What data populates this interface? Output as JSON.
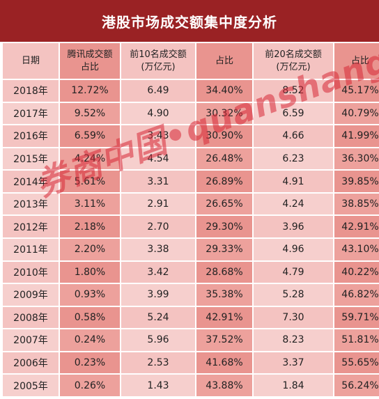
{
  "title": "港股市场成交额集中度分析",
  "headers": [
    [
      "日期"
    ],
    [
      "腾讯成交额",
      "占比"
    ],
    [
      "前10名成交额",
      "(万亿元)"
    ],
    [
      "占比"
    ],
    [
      "前20名成交额",
      "(万亿元)"
    ],
    [
      "占比"
    ]
  ],
  "rows": [
    [
      "2018年",
      "12.72%",
      "6.49",
      "34.40%",
      "8.52",
      "45.17%"
    ],
    [
      "2017年",
      "9.52%",
      "4.90",
      "30.32%",
      "6.59",
      "40.79%"
    ],
    [
      "2016年",
      "6.59%",
      "3.43",
      "30.90%",
      "4.66",
      "41.99%"
    ],
    [
      "2015年",
      "4.24%",
      "4.54",
      "26.48%",
      "6.23",
      "36.30%"
    ],
    [
      "2014年",
      "5.61%",
      "3.31",
      "26.89%",
      "4.91",
      "39.85%"
    ],
    [
      "2013年",
      "3.11%",
      "2.91",
      "26.65%",
      "4.24",
      "38.85%"
    ],
    [
      "2012年",
      "2.18%",
      "2.70",
      "29.30%",
      "3.96",
      "42.91%"
    ],
    [
      "2011年",
      "2.20%",
      "3.38",
      "29.33%",
      "4.96",
      "43.10%"
    ],
    [
      "2010年",
      "1.80%",
      "3.42",
      "28.68%",
      "4.79",
      "40.22%"
    ],
    [
      "2009年",
      "0.93%",
      "3.99",
      "35.38%",
      "5.28",
      "46.82%"
    ],
    [
      "2008年",
      "0.58%",
      "5.24",
      "42.91%",
      "7.30",
      "59.71%"
    ],
    [
      "2007年",
      "0.24%",
      "5.96",
      "37.52%",
      "8.23",
      "51.81%"
    ],
    [
      "2006年",
      "0.23%",
      "2.53",
      "41.68%",
      "3.37",
      "55.65%"
    ],
    [
      "2005年",
      "0.26%",
      "1.43",
      "43.88%",
      "1.84",
      "56.24%"
    ]
  ],
  "watermark": "券商中国•quanshangcn",
  "colors": {
    "title_bg": "#9a2224",
    "light_cell": "#f4c3c1",
    "dark_cell": "#e9948f",
    "watermark": "#d72837"
  }
}
